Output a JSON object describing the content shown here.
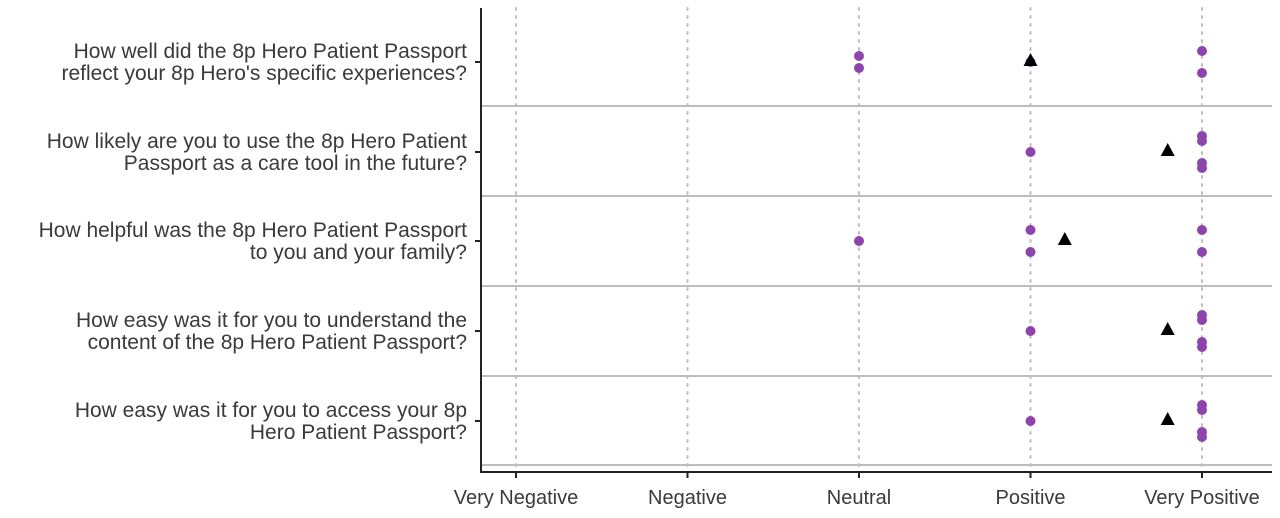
{
  "chart_data": {
    "type": "scatter",
    "x_categories": [
      "Very Negative",
      "Negative",
      "Neutral",
      "Positive",
      "Very Positive"
    ],
    "x_values": [
      1,
      2,
      3,
      4,
      5
    ],
    "xlim": [
      0.8,
      5.4
    ],
    "grid": "vertical dotted at each category; horizontal solid separators between questions",
    "questions": [
      {
        "label_lines": [
          "How well did the 8p Hero Patient Passport",
          "reflect your 8p Hero's specific experiences?"
        ],
        "responses": [
          3,
          3,
          4,
          5,
          5
        ],
        "mean": 4.0
      },
      {
        "label_lines": [
          "How likely are you to use the 8p Hero Patient",
          "Passport as a care tool in the future?"
        ],
        "responses": [
          4,
          5,
          5,
          5,
          5
        ],
        "mean": 4.8
      },
      {
        "label_lines": [
          "How helpful was the 8p Hero Patient Passport",
          "to you and your family?"
        ],
        "responses": [
          3,
          4,
          4,
          5,
          5
        ],
        "mean": 4.2
      },
      {
        "label_lines": [
          "How easy was it for you to understand the",
          "content of the 8p Hero Patient Passport?"
        ],
        "responses": [
          4,
          5,
          5,
          5,
          5
        ],
        "mean": 4.8
      },
      {
        "label_lines": [
          "How easy was it for you to access your 8p",
          "Hero Patient Passport?"
        ],
        "responses": [
          4,
          5,
          5,
          5,
          5
        ],
        "mean": 4.8
      }
    ],
    "colors": {
      "response_point": "#8e44ad",
      "mean_marker": "#000000",
      "separator": "#bdbdbd",
      "gridline": "#bdbdbd",
      "axis": "#222222",
      "text": "#3a3a3a"
    }
  }
}
